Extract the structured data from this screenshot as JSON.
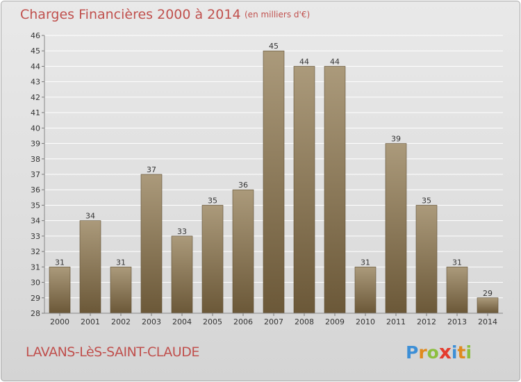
{
  "header": {
    "title": "Charges Financières 2000 à 2014",
    "unit": "(en milliers d'€)"
  },
  "footer": {
    "location": "LAVANS-LèS-SAINT-CLAUDE",
    "logo": {
      "letters": [
        "P",
        "r",
        "o",
        "x",
        "i",
        "t",
        "i"
      ],
      "text": "Proxiti"
    }
  },
  "colors": {
    "title": "#c0504d",
    "bar_top": "#ab9a7b",
    "bar_bottom": "#6b5838",
    "grid": "#ffffff"
  },
  "chart_data": {
    "type": "bar",
    "title": "Charges Financières 2000 à 2014",
    "subtitle": "(en milliers d'€)",
    "xlabel": "",
    "ylabel": "",
    "categories": [
      "2000",
      "2001",
      "2002",
      "2003",
      "2004",
      "2005",
      "2006",
      "2007",
      "2008",
      "2009",
      "2010",
      "2011",
      "2012",
      "2013",
      "2014"
    ],
    "values": [
      31,
      34,
      31,
      37,
      33,
      35,
      36,
      45,
      44,
      44,
      31,
      39,
      35,
      31,
      29
    ],
    "ylim": [
      28,
      46
    ],
    "yticks": [
      28,
      29,
      30,
      31,
      32,
      33,
      34,
      35,
      36,
      37,
      38,
      39,
      40,
      41,
      42,
      43,
      44,
      45,
      46
    ],
    "grid": true,
    "legend": "none"
  }
}
